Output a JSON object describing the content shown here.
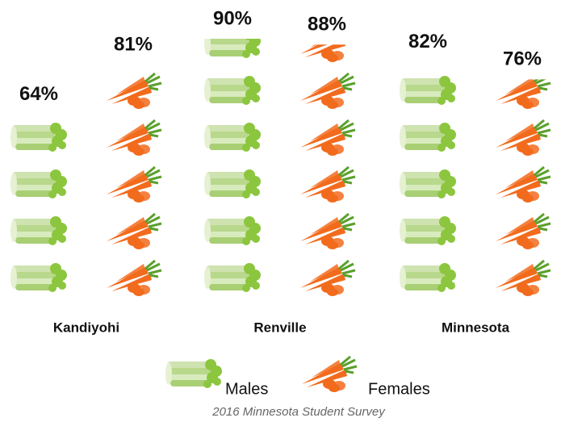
{
  "chart_data": {
    "type": "pictograph",
    "source": "2016 Minnesota Student Survey",
    "categories": [
      "Kandiyohi",
      "Renville",
      "Minnesota"
    ],
    "series": [
      {
        "name": "Males",
        "color": "#8cc63f",
        "values": [
          64,
          90,
          82
        ],
        "value_labels": [
          "64%",
          "90%",
          "82%"
        ]
      },
      {
        "name": "Females",
        "color": "#f26b1d",
        "values": [
          81,
          88,
          76
        ],
        "value_labels": [
          "81%",
          "88%",
          "76%"
        ]
      }
    ],
    "ylim": [
      0,
      100
    ]
  }
}
